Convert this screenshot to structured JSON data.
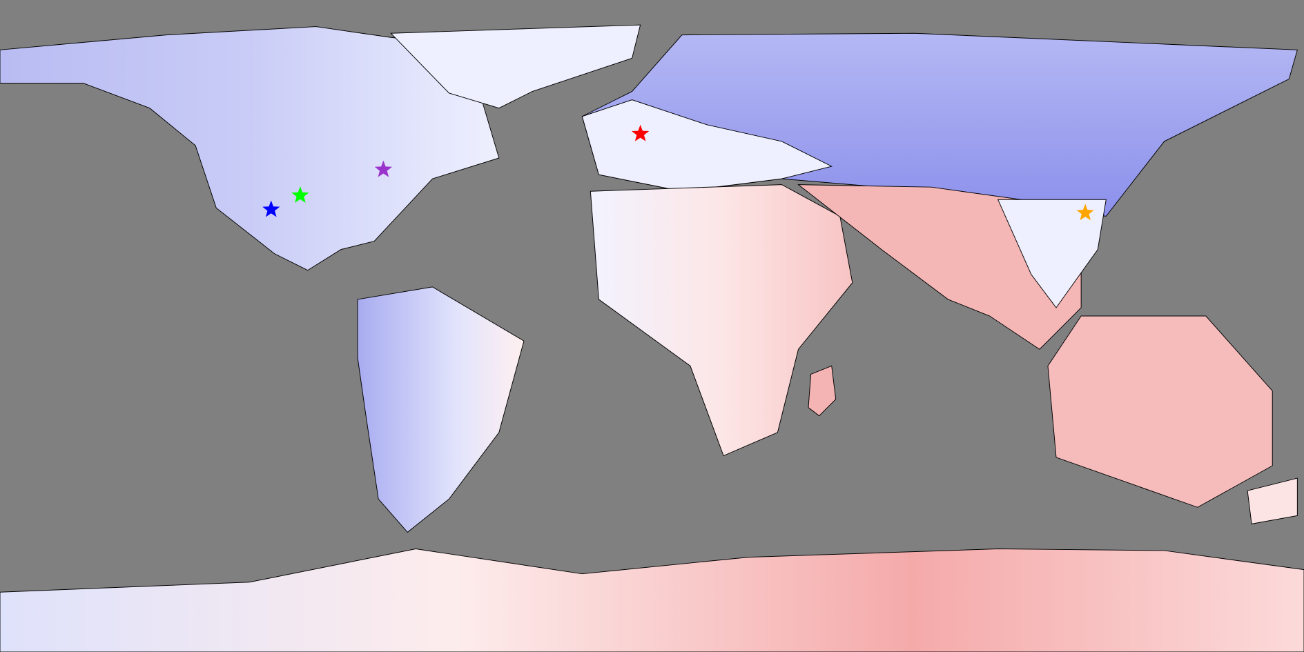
{
  "markers": [
    {
      "color": "#0000ff"
    },
    {
      "color": "#00ff00"
    },
    {
      "color": "#9933cc"
    },
    {
      "color": "#ff0000"
    },
    {
      "color": "#ffa500"
    }
  ]
}
